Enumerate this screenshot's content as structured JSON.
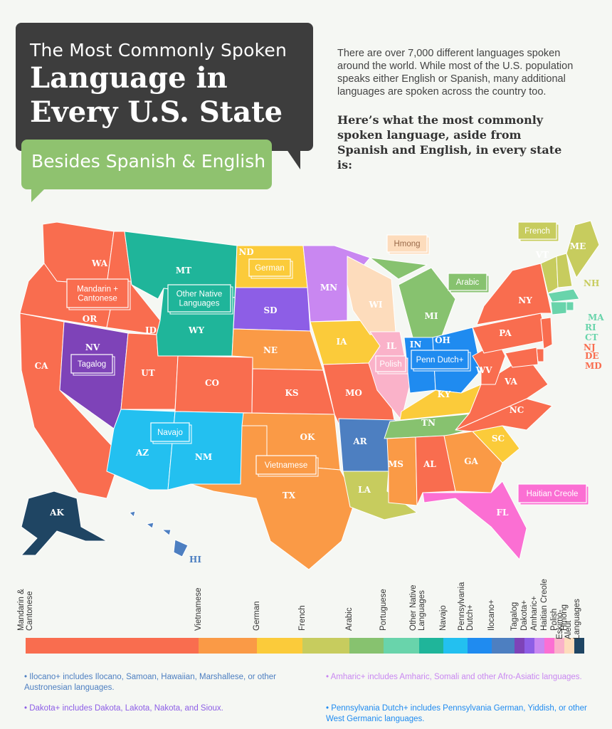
{
  "title": {
    "line1": "The Most Commonly Spoken",
    "line2": "Language in",
    "line3": "Every U.S. State",
    "subtitle": "Besides Spanish & English"
  },
  "intro": "There are over 7,000 different languages spoken around the world. While most of the U.S. population speaks either English or Spanish, many additional languages are spoken across the country too.",
  "lead": "Here’s what the most commonly spoken language, aside from Spanish and English, in every state is:",
  "colors": {
    "mandarin": "#f96d4f",
    "vietnamese": "#fa9a46",
    "german": "#fbcb3a",
    "french": "#c7cc5e",
    "arabic": "#87c26f",
    "portuguese": "#69d4ab",
    "other_native": "#1fb59a",
    "navajo": "#23c0f0",
    "penn_dutch": "#1f8bf0",
    "ilocano": "#4d7fc1",
    "tagalog": "#7e43b8",
    "dakota": "#8d5ee6",
    "amharic": "#c987f1",
    "haitian": "#fb6fd3",
    "polish": "#fab2c9",
    "hmong": "#fddcbc",
    "eskimo": "#1f4563"
  },
  "states": [
    {
      "code": "WA",
      "lang": "mandarin"
    },
    {
      "code": "OR",
      "lang": "mandarin"
    },
    {
      "code": "CA",
      "lang": "mandarin"
    },
    {
      "code": "ID",
      "lang": "mandarin"
    },
    {
      "code": "NV",
      "lang": "tagalog"
    },
    {
      "code": "UT",
      "lang": "mandarin"
    },
    {
      "code": "AZ",
      "lang": "navajo"
    },
    {
      "code": "MT",
      "lang": "other_native"
    },
    {
      "code": "WY",
      "lang": "other_native"
    },
    {
      "code": "CO",
      "lang": "mandarin"
    },
    {
      "code": "NM",
      "lang": "navajo"
    },
    {
      "code": "ND",
      "lang": "german"
    },
    {
      "code": "SD",
      "lang": "dakota"
    },
    {
      "code": "NE",
      "lang": "vietnamese"
    },
    {
      "code": "KS",
      "lang": "mandarin"
    },
    {
      "code": "OK",
      "lang": "vietnamese"
    },
    {
      "code": "TX",
      "lang": "vietnamese"
    },
    {
      "code": "MN",
      "lang": "amharic"
    },
    {
      "code": "IA",
      "lang": "german"
    },
    {
      "code": "MO",
      "lang": "mandarin"
    },
    {
      "code": "AR",
      "lang": "ilocano"
    },
    {
      "code": "LA",
      "lang": "french"
    },
    {
      "code": "WI",
      "lang": "hmong"
    },
    {
      "code": "IL",
      "lang": "polish"
    },
    {
      "code": "MI",
      "lang": "arabic"
    },
    {
      "code": "IN",
      "lang": "penn_dutch"
    },
    {
      "code": "OH",
      "lang": "penn_dutch"
    },
    {
      "code": "KY",
      "lang": "german"
    },
    {
      "code": "TN",
      "lang": "arabic"
    },
    {
      "code": "MS",
      "lang": "vietnamese"
    },
    {
      "code": "AL",
      "lang": "mandarin"
    },
    {
      "code": "GA",
      "lang": "vietnamese"
    },
    {
      "code": "FL",
      "lang": "haitian"
    },
    {
      "code": "SC",
      "lang": "german"
    },
    {
      "code": "NC",
      "lang": "mandarin"
    },
    {
      "code": "VA",
      "lang": "mandarin"
    },
    {
      "code": "WV",
      "lang": "mandarin"
    },
    {
      "code": "PA",
      "lang": "mandarin"
    },
    {
      "code": "NY",
      "lang": "mandarin"
    },
    {
      "code": "VT",
      "lang": "french"
    },
    {
      "code": "NH",
      "lang": "french"
    },
    {
      "code": "ME",
      "lang": "french"
    },
    {
      "code": "MA",
      "lang": "portuguese"
    },
    {
      "code": "RI",
      "lang": "portuguese"
    },
    {
      "code": "CT",
      "lang": "portuguese"
    },
    {
      "code": "NJ",
      "lang": "mandarin"
    },
    {
      "code": "DE",
      "lang": "mandarin"
    },
    {
      "code": "MD",
      "lang": "mandarin"
    },
    {
      "code": "AK",
      "lang": "eskimo"
    },
    {
      "code": "HI",
      "lang": "ilocano"
    }
  ],
  "map_labels": {
    "french": "French",
    "hmong": "Hmong",
    "german": "German",
    "mandarin": "Mandarin +\nCantonese",
    "other_native": "Other Native\nLanguages",
    "arabic": "Arabic",
    "tagalog": "Tagalog",
    "polish": "Polish",
    "penn_dutch": "Penn Dutch+",
    "navajo": "Navajo",
    "vietnamese": "Vietnamese",
    "haitian": "Haitian Creole"
  },
  "legend": [
    {
      "label": "Mandarin &\nCantonese",
      "color": "mandarin"
    },
    {
      "label": "Vietnamese",
      "color": "vietnamese"
    },
    {
      "label": "German",
      "color": "german"
    },
    {
      "label": "French",
      "color": "french"
    },
    {
      "label": "Arabic",
      "color": "arabic"
    },
    {
      "label": "Portuguese",
      "color": "portuguese"
    },
    {
      "label": "Other Native\nLanguages",
      "color": "other_native"
    },
    {
      "label": "Navajo",
      "color": "navajo"
    },
    {
      "label": "Pennsylvania\nDutch+",
      "color": "penn_dutch"
    },
    {
      "label": "Ilocano+",
      "color": "ilocano"
    },
    {
      "label": "Tagalog",
      "color": "tagalog"
    },
    {
      "label": "Dakota+",
      "color": "dakota"
    },
    {
      "label": "Amharic+",
      "color": "amharic"
    },
    {
      "label": "Haitian Creole",
      "color": "haitian"
    },
    {
      "label": "Polish",
      "color": "polish"
    },
    {
      "label": "Hmong",
      "color": "hmong"
    },
    {
      "label": "Eskimo-Aleut\nLanguages",
      "color": "eskimo"
    }
  ],
  "notes": {
    "ilocano": "•  Ilocano+ includes Ilocano, Samoan, Hawaiian, Marshallese, or other Austronesian languages.",
    "dakota": "•  Dakota+ includes Dakota, Lakota, Nakota, and Sioux.",
    "amharic": "•  Amharic+ includes Amharic, Somali and other Afro-Asiatic languages.",
    "penn_dutch": "•  Pennsylvania Dutch+ includes Pennsylvania German, Yiddish, or other West Germanic languages."
  }
}
